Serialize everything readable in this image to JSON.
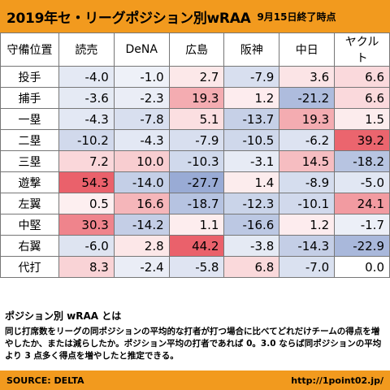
{
  "header": {
    "title": "2019年セ・リーグポジション別wRAA",
    "date": "9月15日終了時点"
  },
  "table": {
    "corner": "守備位置",
    "teams": [
      "読売",
      "DeNA",
      "広島",
      "阪神",
      "中日",
      "ヤクルト"
    ],
    "rows": [
      {
        "pos": "投手",
        "values": [
          "-4.0",
          "-1.0",
          "2.7",
          "-7.9",
          "3.6",
          "6.6"
        ]
      },
      {
        "pos": "捕手",
        "values": [
          "-3.6",
          "-2.3",
          "19.3",
          "1.2",
          "-21.2",
          "6.6"
        ]
      },
      {
        "pos": "一塁",
        "values": [
          "-4.3",
          "-7.8",
          "5.1",
          "-13.7",
          "19.3",
          "1.5"
        ]
      },
      {
        "pos": "二塁",
        "values": [
          "-10.2",
          "-4.3",
          "-7.9",
          "-10.5",
          "-6.2",
          "39.2"
        ]
      },
      {
        "pos": "三塁",
        "values": [
          "7.2",
          "10.0",
          "-10.3",
          "-3.1",
          "14.5",
          "-18.2"
        ]
      },
      {
        "pos": "遊撃",
        "values": [
          "54.3",
          "-14.0",
          "-27.7",
          "1.4",
          "-8.9",
          "-5.0"
        ]
      },
      {
        "pos": "左翼",
        "values": [
          "0.5",
          "16.6",
          "-18.7",
          "-12.3",
          "-10.1",
          "24.1"
        ]
      },
      {
        "pos": "中堅",
        "values": [
          "30.3",
          "-14.2",
          "1.1",
          "-16.6",
          "1.2",
          "-1.7"
        ]
      },
      {
        "pos": "右翼",
        "values": [
          "-6.0",
          "2.8",
          "44.2",
          "-3.8",
          "-14.3",
          "-22.9"
        ]
      },
      {
        "pos": "代打",
        "values": [
          "8.3",
          "-2.4",
          "-5.8",
          "6.8",
          "-7.0",
          "0.0"
        ]
      }
    ]
  },
  "description": {
    "title": "ポジション別 wRAA とは",
    "body": "同じ打席数をリーグの同ポジションの平均的な打者が打つ場合に比べてどれだけチームの得点を増やしたか、または減らしたか。ポジション平均の打者であれば 0。3.0 ならば同ポジションの平均より 3 点多く得点を増やしたと推定できる。"
  },
  "footer": {
    "source": "SOURCE: DELTA",
    "url": "http://1point02.jp/"
  },
  "colors": {
    "accent": "#f29a1e",
    "positive": "#e8505b",
    "negative": "#4f6fb6"
  }
}
